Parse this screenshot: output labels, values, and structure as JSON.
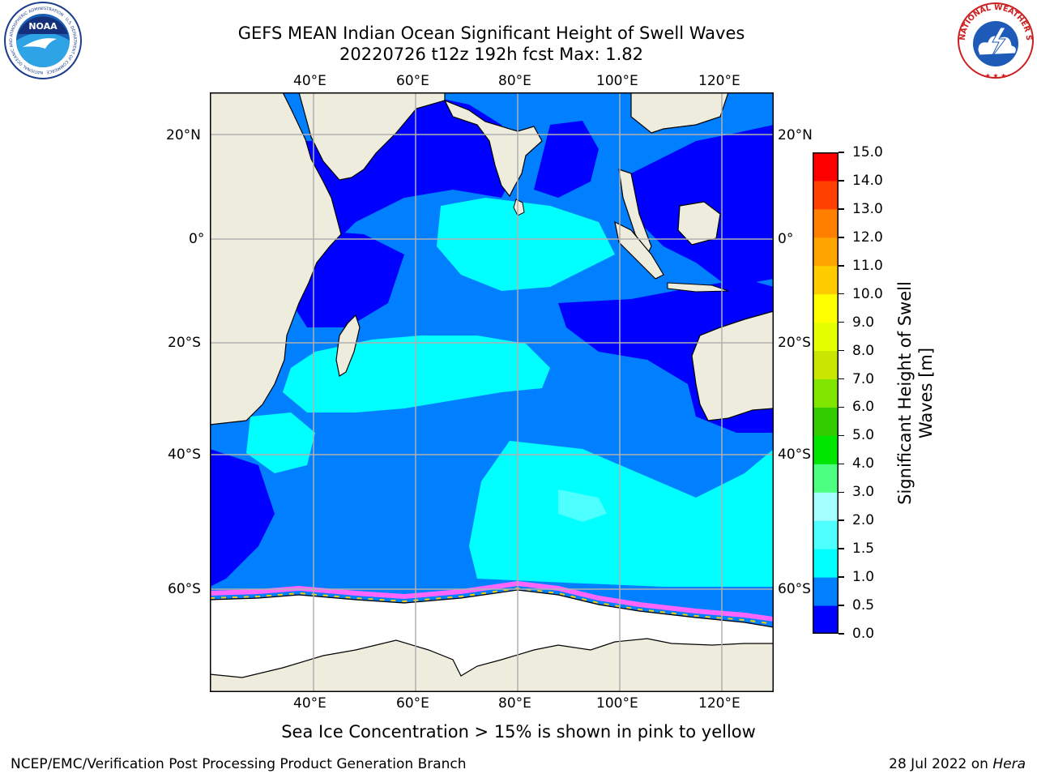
{
  "title_line1": "GEFS MEAN Indian Ocean Significant Height of Swell Waves",
  "title_line2": "20220726 t12z 192h fcst   Max: 1.82",
  "top_lon_labels": [
    "40°E",
    "60°E",
    "80°E",
    "100°E",
    "120°E"
  ],
  "bottom_lon_labels": [
    "40°E",
    "60°E",
    "80°E",
    "100°E",
    "120°E"
  ],
  "left_lat_labels": [
    "20°N",
    "0°",
    "20°S",
    "40°S",
    "60°S"
  ],
  "right_lat_labels": [
    "20°N",
    "0°",
    "20°S",
    "40°S",
    "60°S"
  ],
  "map": {
    "lon_range": [
      20,
      130
    ],
    "lat_range": [
      -75,
      28
    ],
    "colors": {
      "land": "#eeeddd",
      "ice_shelf": "#ffffff",
      "ocean_0": "#0000ff",
      "ocean_05": "#0080ff",
      "ocean_10": "#00ffff",
      "grid": "#b0b0b0"
    }
  },
  "colorbar": {
    "label": "Significant Height of Swell Waves [m]",
    "ticks": [
      "0.0",
      "0.5",
      "1.0",
      "1.5",
      "2.0",
      "3.0",
      "4.0",
      "5.0",
      "6.0",
      "7.0",
      "8.0",
      "9.0",
      "10.0",
      "11.0",
      "12.0",
      "13.0",
      "14.0",
      "15.0"
    ],
    "colors": [
      "#0000ff",
      "#0080ff",
      "#00ffff",
      "#4dffff",
      "#a6ffff",
      "#4dff80",
      "#00e600",
      "#33cc00",
      "#80e600",
      "#c8e600",
      "#e6ff00",
      "#ffff00",
      "#ffcc00",
      "#ffa500",
      "#ff8000",
      "#ff4000",
      "#ff0000"
    ]
  },
  "ice_note": "Sea Ice Concentration > 15% is shown in pink to yellow",
  "footer_left": "NCEP/EMC/Verification Post Processing Product Generation Branch",
  "footer_right_date": "28 Jul 2022 on ",
  "footer_right_host": "Hera",
  "logos": {
    "noaa_text": "NOAA",
    "noaa_ring": "NATIONAL OCEANIC AND ATMOSPHERIC ADMINISTRATION · U.S. DEPARTMENT OF COMMERCE",
    "nws_ring": "NATIONAL WEATHER SERVICE"
  }
}
